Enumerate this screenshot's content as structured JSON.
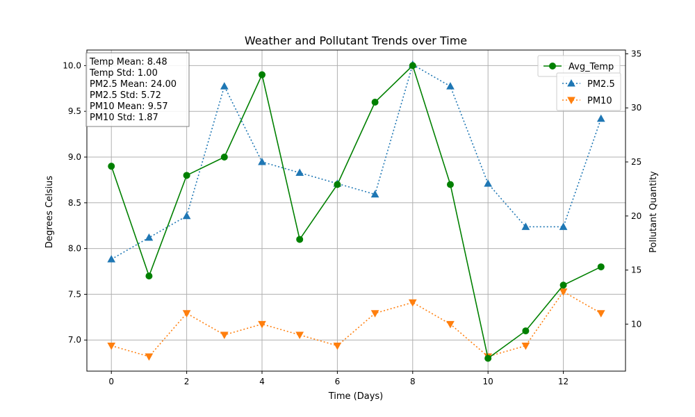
{
  "chart_data": {
    "type": "line",
    "title": "Weather and Pollutant Trends over Time",
    "xlabel": "Time (Days)",
    "ylabel_left": "Degrees Celsius",
    "ylabel_right": "Pollutant Quantity",
    "x": [
      0,
      1,
      2,
      3,
      4,
      5,
      6,
      7,
      8,
      9,
      10,
      11,
      12,
      13
    ],
    "xlim": [
      -0.65,
      13.65
    ],
    "x_ticks": [
      0,
      2,
      4,
      6,
      8,
      10,
      12
    ],
    "ylim_left": [
      6.66,
      10.17
    ],
    "y_ticks_left": [
      "7.0",
      "7.5",
      "8.0",
      "8.5",
      "9.0",
      "9.5",
      "10.0"
    ],
    "ylim_right": [
      5.65,
      35.35
    ],
    "y_ticks_right": [
      "10",
      "15",
      "20",
      "25",
      "30",
      "35"
    ],
    "grid": true,
    "series": [
      {
        "name": "Avg_Temp",
        "axis": "left",
        "color": "#008000",
        "marker": "circle",
        "linestyle": "solid",
        "values": [
          8.9,
          7.7,
          8.8,
          9.0,
          9.9,
          8.1,
          8.7,
          9.6,
          10.0,
          8.7,
          6.8,
          7.1,
          7.6,
          7.8
        ]
      },
      {
        "name": "PM2.5",
        "axis": "right",
        "color": "#1f77b4",
        "marker": "triangle-up",
        "linestyle": "dotted",
        "values": [
          16,
          18,
          20,
          32,
          25,
          24,
          23,
          22,
          34,
          32,
          23,
          19,
          19,
          29
        ]
      },
      {
        "name": "PM10",
        "axis": "right",
        "color": "#ff7f0e",
        "marker": "triangle-down",
        "linestyle": "dotted",
        "values": [
          8,
          7,
          11,
          9,
          10,
          9,
          8,
          11,
          12,
          10,
          7,
          8,
          13,
          11
        ]
      }
    ],
    "legend_left_placement": "top-right",
    "legend_right_placement": "top-right",
    "annotations": {
      "stats_lines": [
        "Temp Mean: 8.48",
        "Temp Std: 1.00",
        "PM2.5 Mean: 24.00",
        "PM2.5 Std: 5.72",
        "PM10 Mean: 9.57",
        "PM10 Std: 1.87"
      ]
    }
  },
  "colors": {
    "grid": "#b0b0b0",
    "axis": "#000000",
    "stats_box_border": "#808080"
  }
}
